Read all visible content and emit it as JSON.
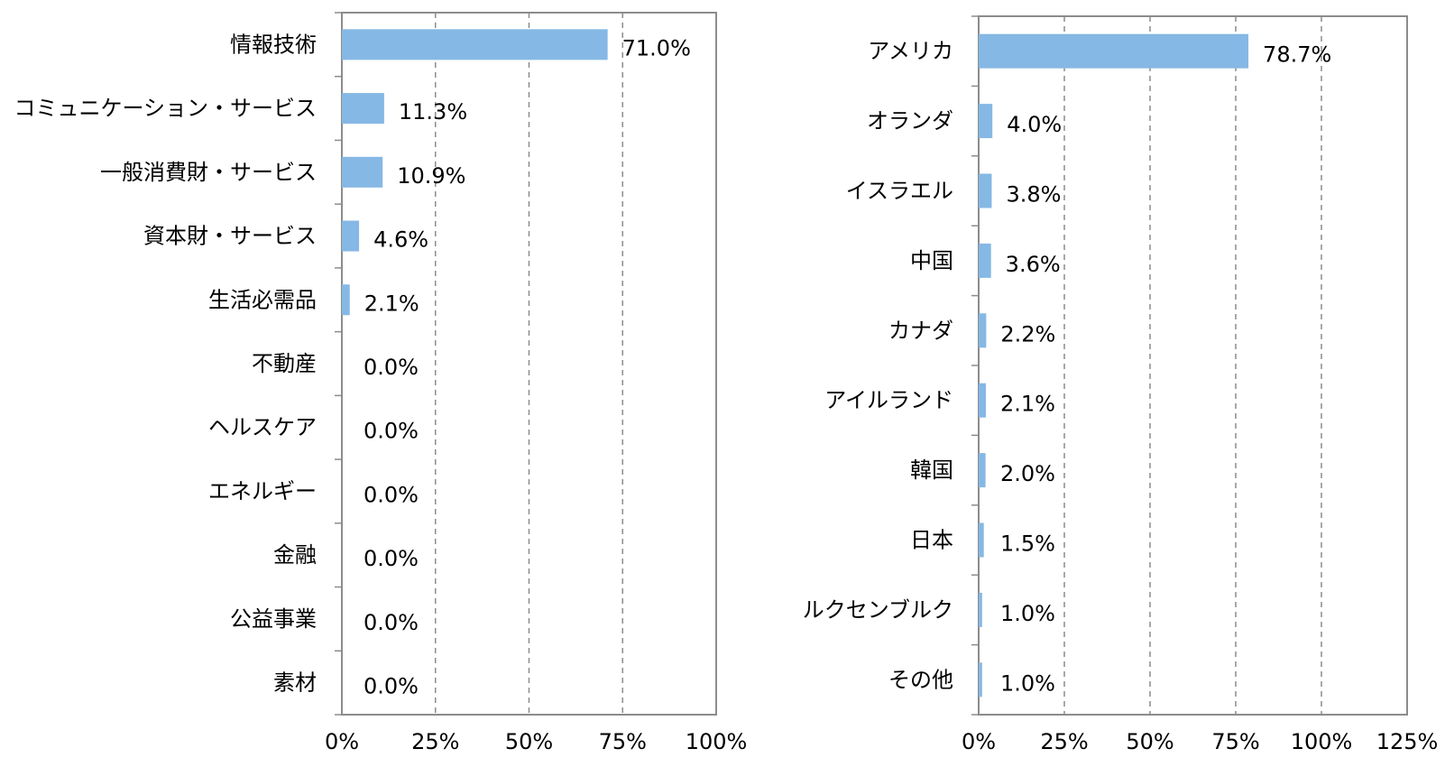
{
  "chart_data": [
    {
      "type": "bar",
      "orientation": "horizontal",
      "categories": [
        "情報技術",
        "コミュニケーション・サービス",
        "一般消費財・サービス",
        "資本財・サービス",
        "生活必需品",
        "不動産",
        "ヘルスケア",
        "エネルギー",
        "金融",
        "公益事業",
        "素材"
      ],
      "values": [
        71.0,
        11.3,
        10.9,
        4.6,
        2.1,
        0.0,
        0.0,
        0.0,
        0.0,
        0.0,
        0.0
      ],
      "value_labels": [
        "71.0%",
        "11.3%",
        "10.9%",
        "4.6%",
        "2.1%",
        "0.0%",
        "0.0%",
        "0.0%",
        "0.0%",
        "0.0%",
        "0.0%"
      ],
      "xlim": [
        0,
        100
      ],
      "x_ticks": [
        "0%",
        "25%",
        "50%",
        "75%",
        "100%"
      ],
      "grid": "dashed-vertical",
      "bar_color": "#85b8e4"
    },
    {
      "type": "bar",
      "orientation": "horizontal",
      "categories": [
        "アメリカ",
        "オランダ",
        "イスラエル",
        "中国",
        "カナダ",
        "アイルランド",
        "韓国",
        "日本",
        "ルクセンブルク",
        "その他"
      ],
      "values": [
        78.7,
        4.0,
        3.8,
        3.6,
        2.2,
        2.1,
        2.0,
        1.5,
        1.0,
        1.0
      ],
      "value_labels": [
        "78.7%",
        "4.0%",
        "3.8%",
        "3.6%",
        "2.2%",
        "2.1%",
        "2.0%",
        "1.5%",
        "1.0%",
        "1.0%"
      ],
      "xlim": [
        0,
        125
      ],
      "x_ticks": [
        "0%",
        "25%",
        "50%",
        "75%",
        "100%",
        "125%"
      ],
      "grid": "dashed-vertical",
      "bar_color": "#85b8e4"
    }
  ]
}
